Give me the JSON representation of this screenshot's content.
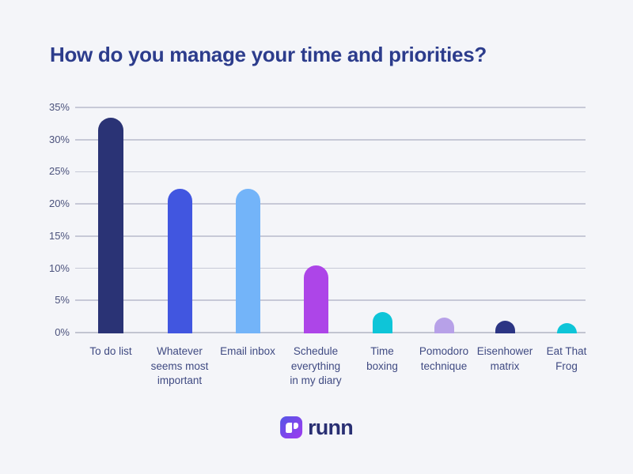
{
  "chart_data": {
    "type": "bar",
    "title": "How do you manage your time and priorities?",
    "categories": [
      "To do list",
      "Whatever seems most important",
      "Email inbox",
      "Schedule everything in my diary",
      "Time boxing",
      "Pomodoro technique",
      "Eisenhower matrix",
      "Eat That Frog"
    ],
    "category_lines": [
      [
        "To do list"
      ],
      [
        "Whatever",
        "seems most",
        "important"
      ],
      [
        "Email inbox"
      ],
      [
        "Schedule",
        "everything",
        "in my diary"
      ],
      [
        "Time",
        "boxing"
      ],
      [
        "Pomodoro",
        "technique"
      ],
      [
        "Eisenhower",
        "matrix"
      ],
      [
        "Eat That",
        "Frog"
      ]
    ],
    "values": [
      33.4,
      22.4,
      22.4,
      10.4,
      3.2,
      2.3,
      1.9,
      1.5
    ],
    "unit": "%",
    "colors": [
      "#2a3375",
      "#4156e0",
      "#73b4f9",
      "#ad45e8",
      "#0ec5d8",
      "#b7a1e8",
      "#2c3584",
      "#0ec5d8"
    ],
    "y_ticks": [
      "35%",
      "30%",
      "25%",
      "20%",
      "15%",
      "10%",
      "5%",
      "0%"
    ],
    "ylim": [
      0,
      35
    ],
    "y_step": 5,
    "grid": "horizontal",
    "legend": "none",
    "xlabel": "",
    "ylabel": ""
  },
  "footer": {
    "brand": "runn"
  },
  "colors": {
    "background": "#f4f5f9",
    "title": "#2c3c8c",
    "grid": "#c7c9d7",
    "axis": "#c2c4d1",
    "tick_label": "#4b527c",
    "category_label": "#3f4a82",
    "logo_gradient_start": "#5457e6",
    "logo_gradient_end": "#a03af0",
    "wordmark": "#292f73"
  }
}
